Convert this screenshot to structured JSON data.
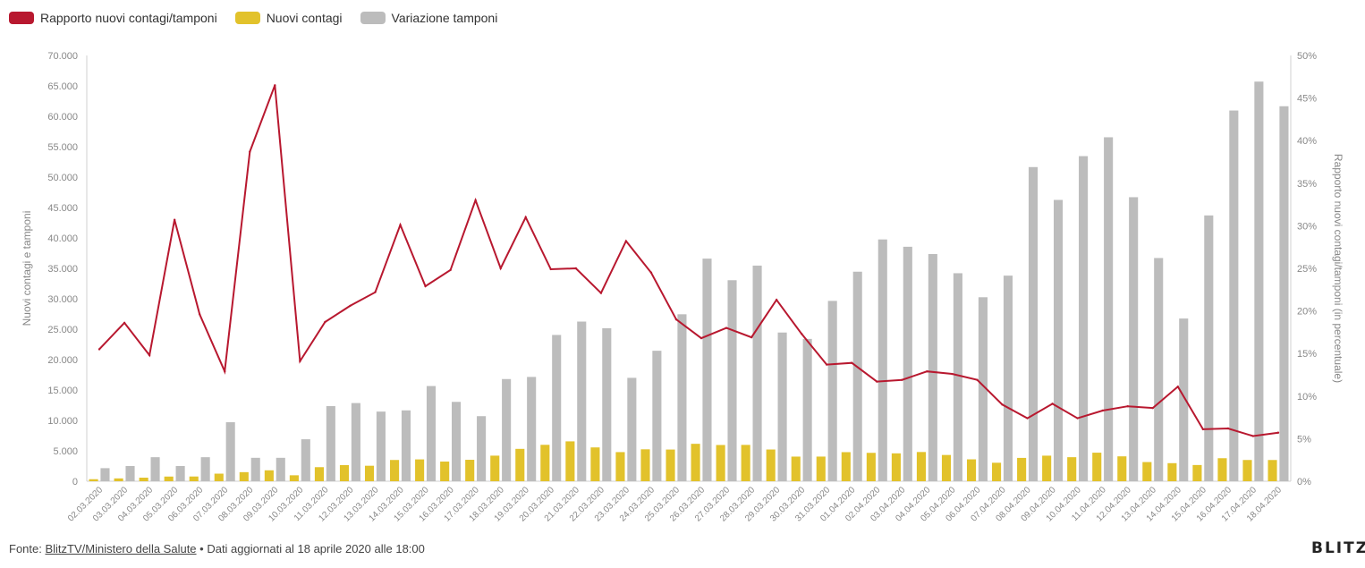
{
  "chart_data": {
    "type": "bar",
    "legend": [
      {
        "name": "Rapporto nuovi contagi/tamponi",
        "color": "#b8182f"
      },
      {
        "name": "Nuovi contagi",
        "color": "#e2c22b"
      },
      {
        "name": "Variazione tamponi",
        "color": "#bcbcbc"
      }
    ],
    "legend_position": "top-left",
    "categories": [
      "02.03.2020",
      "03.03.2020",
      "04.03.2020",
      "05.03.2020",
      "06.03.2020",
      "07.03.2020",
      "08.03.2020",
      "09.03.2020",
      "10.03.2020",
      "11.03.2020",
      "12.03.2020",
      "13.03.2020",
      "14.03.2020",
      "15.03.2020",
      "16.03.2020",
      "17.03.2020",
      "18.03.2020",
      "19.03.2020",
      "20.03.2020",
      "21.03.2020",
      "22.03.2020",
      "23.03.2020",
      "24.03.2020",
      "25.03.2020",
      "26.03.2020",
      "27.03.2020",
      "28.03.2020",
      "29.03.2020",
      "30.03.2020",
      "31.03.2020",
      "01.04.2020",
      "02.04.2020",
      "03.04.2020",
      "04.04.2020",
      "05.04.2020",
      "06.04.2020",
      "07.04.2020",
      "08.04.2020",
      "09.04.2020",
      "10.04.2020",
      "11.04.2020",
      "12.04.2020",
      "13.04.2020",
      "14.04.2020",
      "15.04.2020",
      "16.04.2020",
      "17.04.2020",
      "18.04.2020"
    ],
    "series": [
      {
        "name": "Nuovi contagi",
        "type": "bar",
        "axis": "left",
        "color": "#e2c22b",
        "values": [
          335,
          466,
          587,
          769,
          778,
          1247,
          1492,
          1797,
          977,
          2313,
          2651,
          2547,
          3497,
          3590,
          3233,
          3526,
          4207,
          5322,
          5986,
          6557,
          5560,
          4789,
          5249,
          5210,
          6153,
          5959,
          5974,
          5217,
          4050,
          4053,
          4782,
          4668,
          4585,
          4805,
          4316,
          3599,
          3039,
          3836,
          4204,
          3951,
          4694,
          4092,
          3153,
          2972,
          2667,
          3786,
          3493,
          3491
        ]
      },
      {
        "name": "Variazione tamponi",
        "type": "bar",
        "axis": "left",
        "color": "#bcbcbc",
        "values": [
          2150,
          2500,
          3950,
          2500,
          3950,
          9700,
          3850,
          3850,
          6900,
          12350,
          12850,
          11450,
          11650,
          15650,
          13050,
          10700,
          16800,
          17150,
          24050,
          26250,
          25150,
          17000,
          21450,
          27450,
          36600,
          33050,
          35450,
          24450,
          23400,
          29650,
          34450,
          39750,
          38550,
          37350,
          34200,
          30250,
          33800,
          51650,
          46250,
          53450,
          56550,
          46700,
          36700,
          26750,
          43700,
          60950,
          65700,
          61650
        ]
      },
      {
        "name": "Rapporto nuovi contagi/tamponi",
        "type": "line",
        "axis": "right",
        "color": "#b8182f",
        "values": [
          15.5,
          18.6,
          14.8,
          30.7,
          19.6,
          12.9,
          38.7,
          46.5,
          14.1,
          18.7,
          20.6,
          22.2,
          30.1,
          22.9,
          24.8,
          33.0,
          25.0,
          31.0,
          24.9,
          25.0,
          22.1,
          28.2,
          24.5,
          19.0,
          16.8,
          18.0,
          16.9,
          21.3,
          17.3,
          13.7,
          13.9,
          11.7,
          11.9,
          12.9,
          12.6,
          11.9,
          9.0,
          7.4,
          9.1,
          7.4,
          8.3,
          8.8,
          8.6,
          11.1,
          6.1,
          6.2,
          5.3,
          5.7
        ]
      }
    ],
    "y_left": {
      "label": "Nuovi contagi e tamponi",
      "min": 0,
      "max": 70000,
      "step": 5000,
      "ticks": [
        "0",
        "5.000",
        "10.000",
        "15.000",
        "20.000",
        "25.000",
        "30.000",
        "35.000",
        "40.000",
        "45.000",
        "50.000",
        "55.000",
        "60.000",
        "65.000",
        "70.000"
      ]
    },
    "y_right": {
      "label": "Rapporto nuovi contagi/tamponi (in percentuale)",
      "min": 0,
      "max": 50,
      "step": 5,
      "ticks": [
        "0%",
        "5%",
        "10%",
        "15%",
        "20%",
        "25%",
        "30%",
        "35%",
        "40%",
        "45%",
        "50%"
      ]
    },
    "grid": false
  },
  "footer": {
    "prefix": "Fonte: ",
    "source": "BlitzTV/Ministero della Salute",
    "note": " • Dati aggiornati al 18 aprile 2020 alle 18:00"
  },
  "brand": "BLITZ"
}
